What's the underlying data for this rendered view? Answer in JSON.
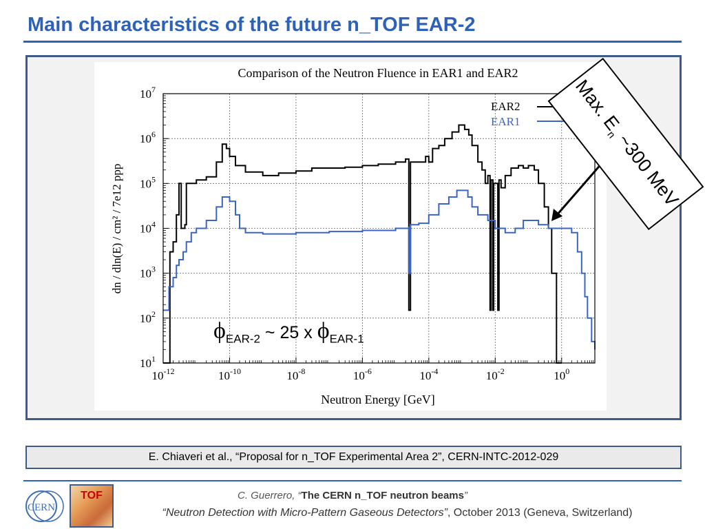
{
  "slide": {
    "title": "Main characteristics of the future n_TOF EAR-2",
    "annotation": {
      "prefix": "Max. E",
      "sub": "n",
      "suffix": " ~300 MeV"
    },
    "ratio": {
      "phi": "ϕ",
      "sub1": "EAR-2",
      "mid": " ~ 25 x ",
      "sub2": "EAR-1"
    },
    "citation": "E. Chiaveri et al., “Proposal for n_TOF Experimental Area 2”, CERN-INTC-2012-029",
    "footer": {
      "author": "C. Guerrero, ",
      "open_quote": "“",
      "talk": "The CERN n_TOF neutron beams",
      "close_quote": "”",
      "conference": "“Neutron Detection with Micro-Pattern Gaseous Detectors”",
      "date_place": ", October 2013 (Geneva, Switzerland)"
    },
    "logos": {
      "cern": "CERN",
      "tof": "TOF"
    }
  },
  "chart_data": {
    "type": "line",
    "step": true,
    "title": "Comparison of the Neutron Fluence in EAR1 and EAR2",
    "xlabel": "Neutron Energy [GeV]",
    "ylabel": "dn / dln(E) / cm² / 7e12 ppp",
    "xscale": "log",
    "yscale": "log",
    "xlim": [
      1e-12,
      10
    ],
    "ylim": [
      10,
      10000000.0
    ],
    "grid": true,
    "legend_position": "top-right",
    "x_ticks": [
      {
        "value": -12,
        "base": "10",
        "exp": "-12"
      },
      {
        "value": -10,
        "base": "10",
        "exp": "-10"
      },
      {
        "value": -8,
        "base": "10",
        "exp": "-8"
      },
      {
        "value": -6,
        "base": "10",
        "exp": "-6"
      },
      {
        "value": -4,
        "base": "10",
        "exp": "-4"
      },
      {
        "value": -2,
        "base": "10",
        "exp": "-2"
      },
      {
        "value": 0,
        "base": "10",
        "exp": "0"
      }
    ],
    "y_ticks": [
      {
        "value": 1,
        "base": "10",
        "exp": "1"
      },
      {
        "value": 2,
        "base": "10",
        "exp": "2"
      },
      {
        "value": 3,
        "base": "10",
        "exp": "3"
      },
      {
        "value": 4,
        "base": "10",
        "exp": "4"
      },
      {
        "value": 5,
        "base": "10",
        "exp": "5"
      },
      {
        "value": 6,
        "base": "10",
        "exp": "6"
      },
      {
        "value": 7,
        "base": "10",
        "exp": "7"
      }
    ],
    "series": [
      {
        "name": "EAR2",
        "color": "#000000",
        "points": [
          [
            1e-12,
            10
          ],
          [
            1.6e-12,
            10
          ],
          [
            1.6e-12,
            3000
          ],
          [
            2e-12,
            5000
          ],
          [
            2.5e-12,
            20000.0
          ],
          [
            3e-12,
            100000.0
          ],
          [
            3.5e-12,
            100000.0
          ],
          [
            3.5e-12,
            10000.0
          ],
          [
            4.5e-12,
            12000.0
          ],
          [
            5e-12,
            100000.0
          ],
          [
            1e-11,
            120000.0
          ],
          [
            2e-11,
            140000.0
          ],
          [
            4e-11,
            300000.0
          ],
          [
            6e-11,
            750000.0
          ],
          [
            8e-11,
            600000.0
          ],
          [
            1e-10,
            400000.0
          ],
          [
            1.5e-10,
            250000.0
          ],
          [
            3e-10,
            180000.0
          ],
          [
            1e-09,
            150000.0
          ],
          [
            3e-09,
            170000.0
          ],
          [
            1e-08,
            190000.0
          ],
          [
            3e-08,
            220000.0
          ],
          [
            1e-07,
            220000.0
          ],
          [
            3e-07,
            230000.0
          ],
          [
            1e-06,
            250000.0
          ],
          [
            3e-06,
            270000.0
          ],
          [
            1e-05,
            300000.0
          ],
          [
            2e-05,
            350000.0
          ],
          [
            2.5e-05,
            350000.0
          ],
          [
            2.5e-05,
            150
          ],
          [
            2.8e-05,
            150
          ],
          [
            2.8e-05,
            300000.0
          ],
          [
            5e-05,
            300000.0
          ],
          [
            8e-05,
            400000.0
          ],
          [
            0.0001,
            300000.0
          ],
          [
            0.00013,
            600000.0
          ],
          [
            0.0002,
            700000.0
          ],
          [
            0.0003,
            1000000.0
          ],
          [
            0.0005,
            1400000.0
          ],
          [
            0.0008,
            2000000.0
          ],
          [
            0.0012,
            1600000.0
          ],
          [
            0.0016,
            1200000.0
          ],
          [
            0.002,
            700000.0
          ],
          [
            0.003,
            300000.0
          ],
          [
            0.004,
            200000.0
          ],
          [
            0.005,
            100000.0
          ],
          [
            0.006,
            150000.0
          ],
          [
            0.007,
            150
          ],
          [
            0.0075,
            120000.0
          ],
          [
            0.0085,
            150
          ],
          [
            0.009,
            100000.0
          ],
          [
            0.01,
            100000.0
          ],
          [
            0.012,
            150
          ],
          [
            0.013,
            120000.0
          ],
          [
            0.015,
            80000.0
          ],
          [
            0.02,
            150000.0
          ],
          [
            0.03,
            220000.0
          ],
          [
            0.05,
            250000.0
          ],
          [
            0.07,
            220000.0
          ],
          [
            0.1,
            250000.0
          ],
          [
            0.15,
            200000.0
          ],
          [
            0.2,
            100000.0
          ],
          [
            0.3,
            30000.0
          ],
          [
            0.4,
            10000.0
          ],
          [
            0.5,
            1000
          ],
          [
            0.7,
            1000
          ],
          [
            0.7,
            10
          ],
          [
            1,
            10
          ]
        ]
      },
      {
        "name": "EAR1",
        "color": "#3a63c8",
        "points": [
          [
            1e-12,
            150
          ],
          [
            1.5e-12,
            500
          ],
          [
            2e-12,
            800
          ],
          [
            2.5e-12,
            1500
          ],
          [
            3e-12,
            2000
          ],
          [
            4e-12,
            3000
          ],
          [
            5e-12,
            5000
          ],
          [
            7e-12,
            8000
          ],
          [
            1e-11,
            10000.0
          ],
          [
            2e-11,
            15000.0
          ],
          [
            4e-11,
            30000.0
          ],
          [
            6e-11,
            50000.0
          ],
          [
            1e-10,
            40000.0
          ],
          [
            1.5e-10,
            20000.0
          ],
          [
            2e-10,
            10000.0
          ],
          [
            3e-10,
            8000
          ],
          [
            1e-09,
            7500
          ],
          [
            1e-08,
            8000
          ],
          [
            1e-07,
            8500
          ],
          [
            1e-06,
            9000
          ],
          [
            1e-05,
            10000.0
          ],
          [
            2.5e-05,
            11000.0
          ],
          [
            2.5e-05,
            1000
          ],
          [
            2.8e-05,
            12000.0
          ],
          [
            5e-05,
            13000.0
          ],
          [
            0.0001,
            20000.0
          ],
          [
            0.0002,
            35000.0
          ],
          [
            0.0004,
            50000.0
          ],
          [
            0.0007,
            70000.0
          ],
          [
            0.001,
            70000.0
          ],
          [
            0.0015,
            50000.0
          ],
          [
            0.002,
            30000.0
          ],
          [
            0.003,
            20000.0
          ],
          [
            0.006,
            15000.0
          ],
          [
            0.01,
            10000.0
          ],
          [
            0.02,
            8000
          ],
          [
            0.04,
            10000.0
          ],
          [
            0.07,
            15000.0
          ],
          [
            0.1,
            15000.0
          ],
          [
            0.2,
            12000.0
          ],
          [
            0.4,
            10000.0
          ],
          [
            1,
            10000.0
          ],
          [
            2,
            8000
          ],
          [
            3,
            3000
          ],
          [
            4,
            1000
          ],
          [
            5,
            300
          ],
          [
            6,
            100
          ],
          [
            8,
            30
          ],
          [
            10,
            20
          ]
        ]
      }
    ]
  }
}
